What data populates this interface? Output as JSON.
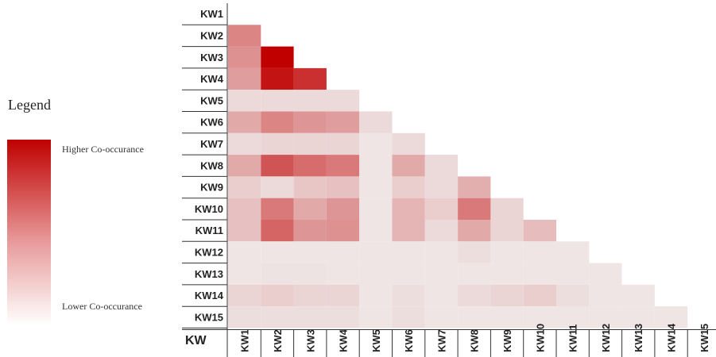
{
  "chart_data": {
    "type": "heatmap",
    "axis_label": "KW",
    "rows": [
      "KW1",
      "KW2",
      "KW3",
      "KW4",
      "KW5",
      "KW6",
      "KW7",
      "KW8",
      "KW9",
      "KW10",
      "KW11",
      "KW12",
      "KW13",
      "KW14",
      "KW15"
    ],
    "columns": [
      "KW1",
      "KW2",
      "KW3",
      "KW4",
      "KW5",
      "KW6",
      "KW7",
      "KW8",
      "KW9",
      "KW10",
      "KW11",
      "KW12",
      "KW13",
      "KW14",
      "KW15"
    ],
    "matrix": [
      [],
      [
        0.45
      ],
      [
        0.4,
        1.0
      ],
      [
        0.35,
        0.92,
        0.8
      ],
      [
        0.1,
        0.1,
        0.1,
        0.1
      ],
      [
        0.3,
        0.45,
        0.38,
        0.35,
        0.1
      ],
      [
        0.1,
        0.12,
        0.12,
        0.12,
        0.05,
        0.1
      ],
      [
        0.3,
        0.65,
        0.55,
        0.5,
        0.05,
        0.3,
        0.1
      ],
      [
        0.15,
        0.1,
        0.18,
        0.2,
        0.05,
        0.15,
        0.1,
        0.28
      ],
      [
        0.2,
        0.5,
        0.3,
        0.38,
        0.05,
        0.25,
        0.15,
        0.5,
        0.12
      ],
      [
        0.2,
        0.58,
        0.38,
        0.4,
        0.05,
        0.25,
        0.1,
        0.3,
        0.12,
        0.22
      ],
      [
        0.05,
        0.05,
        0.05,
        0.05,
        0.05,
        0.05,
        0.05,
        0.08,
        0.05,
        0.05,
        0.05
      ],
      [
        0.05,
        0.06,
        0.06,
        0.05,
        0.05,
        0.05,
        0.05,
        0.05,
        0.05,
        0.05,
        0.05,
        0.05
      ],
      [
        0.12,
        0.15,
        0.12,
        0.12,
        0.05,
        0.08,
        0.05,
        0.1,
        0.12,
        0.15,
        0.08,
        0.05,
        0.05
      ],
      [
        0.08,
        0.08,
        0.08,
        0.08,
        0.05,
        0.08,
        0.05,
        0.05,
        0.05,
        0.05,
        0.05,
        0.05,
        0.05,
        0.05
      ]
    ],
    "color_scale": {
      "low": "#f1f1f1",
      "high": "#c00000"
    },
    "legend": {
      "title": "Legend",
      "high_label": "Higher Co-occurance",
      "low_label": "Lower Co-occurance"
    }
  }
}
